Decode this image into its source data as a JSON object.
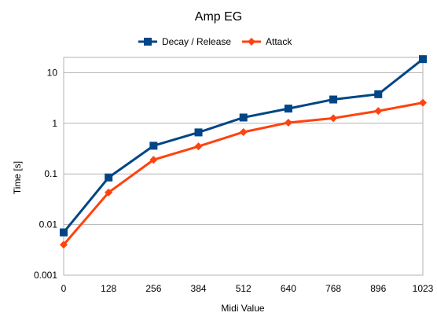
{
  "chart_data": {
    "type": "line",
    "title": "Amp EG",
    "xlabel": "Midi Value",
    "ylabel": "Time [s]",
    "y_scale": "log",
    "ylim": [
      0.001,
      20
    ],
    "x": [
      0,
      128,
      256,
      384,
      512,
      640,
      768,
      896,
      1023
    ],
    "x_tick_labels": [
      "0",
      "128",
      "256",
      "384",
      "512",
      "640",
      "768",
      "896",
      "1023"
    ],
    "y_ticks": [
      0.001,
      0.01,
      0.1,
      1,
      10
    ],
    "y_tick_labels": [
      "0.001",
      "0.01",
      "0.1",
      "1",
      "10"
    ],
    "grid": "horizontal",
    "legend_position": "top",
    "series": [
      {
        "name": "Decay / Release",
        "color": "#004586",
        "marker": "square",
        "values": [
          0.007,
          0.085,
          0.36,
          0.66,
          1.3,
          1.95,
          2.95,
          3.75,
          18.5
        ]
      },
      {
        "name": "Attack",
        "color": "#ff420e",
        "marker": "diamond",
        "values": [
          0.004,
          0.043,
          0.19,
          0.35,
          0.67,
          1.03,
          1.26,
          1.75,
          2.55
        ]
      }
    ]
  }
}
